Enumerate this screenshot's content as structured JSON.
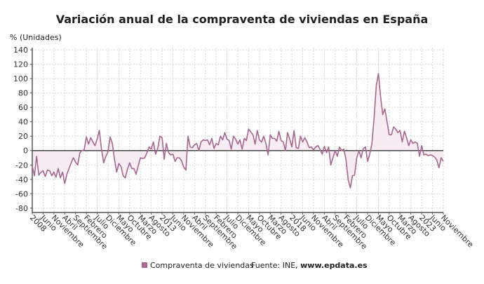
{
  "chart_data": {
    "type": "area",
    "title": "Variación anual de la compraventa de viviendas en España",
    "ylabel": "% (Unidades)",
    "xlabel": "",
    "ylim": [
      -86,
      143
    ],
    "yticks": [
      140,
      120,
      100,
      80,
      60,
      40,
      20,
      0,
      -20,
      -40,
      -60,
      -80
    ],
    "grid": true,
    "legend_position": "bottom",
    "x_start": "2008-01",
    "x_end": "2023-11",
    "x_tick_labels": [
      "2008",
      "Junio",
      "Noviembre",
      "Abril",
      "Septiembre",
      "Febrero",
      "Julio",
      "Diciembre",
      "Mayo",
      "Octubre",
      "Marzo",
      "Agosto",
      "2013",
      "Junio",
      "Noviembre",
      "Abril",
      "Septiembre",
      "Febrero",
      "Julio",
      "Diciembre",
      "Mayo",
      "Octubre",
      "Marzo",
      "Agosto",
      "2018",
      "Junio",
      "Noviembre",
      "Abril",
      "Septiembre",
      "Febrero",
      "Julio",
      "Diciembre",
      "Mayo",
      "Octubre",
      "Marzo",
      "Agosto",
      "2023",
      "Junio",
      "Noviembre"
    ],
    "series": [
      {
        "name": "Compraventa de viviendas",
        "color": "#a8668f",
        "fill_color": "#f6ecf1",
        "values": [
          -22,
          -35,
          -8,
          -34,
          -30,
          -28,
          -36,
          -27,
          -28,
          -35,
          -30,
          -37,
          -25,
          -38,
          -30,
          -46,
          -33,
          -25,
          -17,
          -10,
          -16,
          -20,
          -3,
          0,
          1,
          19,
          9,
          18,
          12,
          7,
          16,
          28,
          2,
          -17,
          -8,
          -2,
          19,
          10,
          -12,
          -30,
          -18,
          -22,
          -35,
          -38,
          -26,
          -17,
          -25,
          -25,
          -33,
          -21,
          -10,
          -11,
          -10,
          -3,
          5,
          2,
          12,
          -5,
          3,
          20,
          18,
          -12,
          10,
          -3,
          -6,
          -5,
          -15,
          -10,
          -10,
          -14,
          -23,
          -27,
          20,
          5,
          4,
          8,
          10,
          0,
          12,
          15,
          14,
          15,
          8,
          17,
          3,
          10,
          8,
          20,
          15,
          25,
          16,
          14,
          2,
          20,
          16,
          9,
          15,
          2,
          17,
          14,
          30,
          26,
          22,
          9,
          28,
          15,
          12,
          20,
          10,
          -6,
          22,
          17,
          17,
          13,
          27,
          14,
          12,
          0,
          25,
          16,
          5,
          28,
          4,
          3,
          20,
          12,
          18,
          12,
          4,
          5,
          1,
          5,
          7,
          2,
          -5,
          6,
          -3,
          5,
          -20,
          -10,
          0,
          -8,
          5,
          0,
          2,
          -12,
          -40,
          -52,
          -35,
          -34,
          -10,
          0,
          -10,
          3,
          5,
          -15,
          -5,
          10,
          45,
          90,
          107,
          75,
          50,
          58,
          40,
          22,
          22,
          33,
          30,
          25,
          28,
          12,
          27,
          18,
          7,
          15,
          10,
          12,
          10,
          -8,
          7,
          -6,
          -5,
          -7,
          -6,
          -7,
          -9,
          -13,
          -24,
          -10,
          -15
        ]
      }
    ],
    "source_label": "Fuente: INE, ",
    "source_link": "www.epdata.es"
  }
}
